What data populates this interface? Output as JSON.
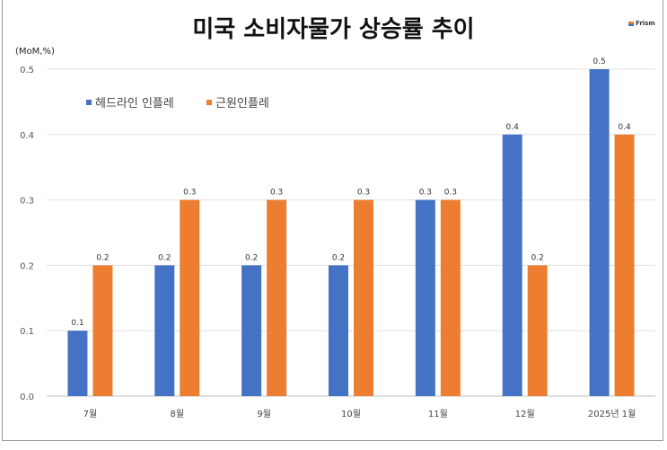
{
  "chart_data": {
    "type": "bar",
    "title": "미국 소비자물가 상승률 추이",
    "ylabel": "(MoM,%)",
    "categories": [
      "7월",
      "8월",
      "9월",
      "10월",
      "11월",
      "12월",
      "2025년 1월"
    ],
    "series": [
      {
        "name": "헤드라인 인플레",
        "color": "#4472c4",
        "values": [
          0.1,
          0.2,
          0.2,
          0.2,
          0.3,
          0.4,
          0.5
        ]
      },
      {
        "name": "근원인플레",
        "color": "#ed7d31",
        "values": [
          0.2,
          0.3,
          0.3,
          0.3,
          0.3,
          0.2,
          0.4
        ]
      }
    ],
    "ylim": [
      0,
      0.5
    ],
    "yticks": [
      "0.0",
      "0.1",
      "0.2",
      "0.3",
      "0.4",
      "0.5"
    ],
    "grid": true,
    "legend": "top-left"
  },
  "logo": "Frism"
}
